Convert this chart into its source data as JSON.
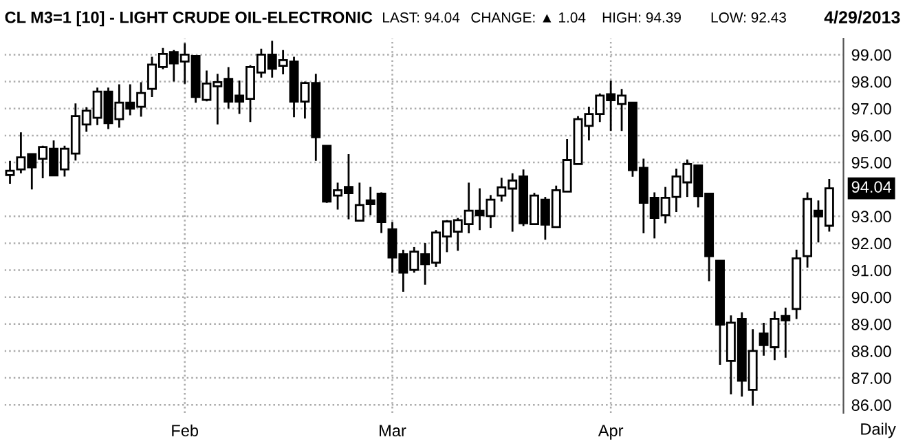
{
  "chart_data": {
    "type": "candlestick",
    "title": "CL M3=1 [10] - LIGHT CRUDE OIL-ELECTRONIC",
    "annotations": [
      "LAST: 94.04",
      "CHANGE: ▲ 1.04",
      "HIGH: 94.39",
      "LOW: 92.43",
      "4/29/2013",
      "Daily",
      "94.04"
    ],
    "categories": [
      null,
      null,
      null,
      null,
      null,
      null,
      null,
      null,
      null,
      null,
      null,
      null,
      null,
      null,
      null,
      null,
      "Feb",
      null,
      null,
      null,
      null,
      null,
      null,
      null,
      null,
      null,
      null,
      null,
      null,
      null,
      null,
      null,
      null,
      null,
      null,
      "Mar",
      null,
      null,
      null,
      null,
      null,
      null,
      null,
      null,
      null,
      null,
      null,
      null,
      null,
      null,
      null,
      null,
      null,
      null,
      null,
      "Apr",
      null,
      null,
      null,
      null,
      null,
      null,
      null,
      null,
      null,
      null,
      null,
      null,
      null,
      null,
      null,
      null,
      null,
      null,
      null,
      null
    ],
    "ohlc": [
      [
        94.53,
        95.06,
        94.21,
        94.69
      ],
      [
        94.74,
        96.12,
        94.6,
        95.19
      ],
      [
        95.31,
        95.31,
        94.0,
        94.82
      ],
      [
        95.14,
        95.62,
        94.41,
        95.57
      ],
      [
        95.51,
        95.82,
        94.52,
        94.52
      ],
      [
        94.74,
        95.62,
        94.48,
        95.51
      ],
      [
        95.33,
        97.19,
        95.07,
        96.72
      ],
      [
        96.41,
        97.05,
        96.14,
        96.92
      ],
      [
        96.66,
        97.78,
        96.39,
        97.63
      ],
      [
        97.63,
        97.78,
        96.24,
        96.46
      ],
      [
        96.61,
        97.9,
        96.29,
        97.22
      ],
      [
        97.22,
        97.9,
        96.75,
        97.0
      ],
      [
        97.07,
        97.98,
        96.7,
        97.58
      ],
      [
        97.73,
        98.92,
        97.43,
        98.63
      ],
      [
        98.54,
        99.25,
        98.46,
        99.03
      ],
      [
        99.1,
        99.17,
        98.0,
        98.68
      ],
      [
        98.75,
        99.42,
        97.92,
        99.0
      ],
      [
        98.95,
        98.95,
        97.22,
        97.43
      ],
      [
        97.32,
        98.41,
        97.27,
        97.93
      ],
      [
        97.83,
        98.29,
        96.41,
        97.98
      ],
      [
        98.1,
        98.54,
        97.0,
        97.26
      ],
      [
        97.48,
        98.04,
        96.8,
        97.26
      ],
      [
        97.36,
        98.61,
        96.5,
        98.54
      ],
      [
        98.34,
        99.22,
        98.15,
        99.0
      ],
      [
        99.0,
        99.52,
        98.15,
        98.48
      ],
      [
        98.59,
        99.17,
        98.27,
        98.8
      ],
      [
        98.75,
        98.92,
        96.68,
        97.26
      ],
      [
        97.26,
        98.0,
        96.63,
        97.95
      ],
      [
        97.95,
        98.29,
        95.06,
        95.94
      ],
      [
        95.62,
        95.62,
        93.5,
        93.55
      ],
      [
        93.77,
        94.25,
        93.25,
        93.97
      ],
      [
        94.09,
        95.31,
        92.89,
        93.86
      ],
      [
        92.84,
        94.25,
        92.84,
        93.42
      ],
      [
        93.59,
        94.09,
        93.04,
        93.45
      ],
      [
        93.84,
        93.89,
        92.38,
        92.79
      ],
      [
        92.52,
        92.79,
        90.91,
        91.47
      ],
      [
        91.59,
        91.76,
        90.2,
        90.91
      ],
      [
        91.01,
        91.86,
        90.91,
        91.69
      ],
      [
        91.59,
        92.01,
        90.46,
        91.22
      ],
      [
        91.28,
        92.49,
        91.12,
        92.4
      ],
      [
        92.25,
        92.86,
        91.67,
        92.81
      ],
      [
        92.43,
        92.94,
        91.72,
        92.86
      ],
      [
        92.71,
        94.25,
        92.37,
        93.21
      ],
      [
        93.21,
        94.04,
        92.49,
        93.04
      ],
      [
        93.01,
        93.79,
        92.57,
        93.62
      ],
      [
        93.77,
        94.43,
        93.55,
        94.08
      ],
      [
        94.03,
        94.6,
        92.43,
        94.33
      ],
      [
        94.48,
        94.74,
        92.64,
        92.74
      ],
      [
        92.71,
        93.87,
        92.71,
        93.77
      ],
      [
        93.62,
        93.72,
        92.13,
        92.69
      ],
      [
        92.6,
        94.14,
        92.6,
        93.97
      ],
      [
        93.92,
        95.87,
        93.92,
        95.09
      ],
      [
        94.94,
        96.72,
        94.94,
        96.61
      ],
      [
        96.36,
        97.07,
        95.82,
        96.8
      ],
      [
        96.8,
        97.56,
        96.5,
        97.48
      ],
      [
        97.53,
        98.04,
        96.17,
        97.31
      ],
      [
        97.17,
        97.73,
        96.17,
        97.48
      ],
      [
        97.22,
        97.22,
        94.47,
        94.72
      ],
      [
        94.8,
        95.14,
        92.37,
        93.5
      ],
      [
        93.69,
        93.89,
        92.18,
        92.94
      ],
      [
        93.04,
        94.09,
        92.74,
        93.69
      ],
      [
        93.72,
        94.77,
        93.16,
        94.48
      ],
      [
        94.26,
        95.11,
        93.72,
        94.94
      ],
      [
        94.89,
        94.89,
        93.33,
        93.75
      ],
      [
        93.84,
        93.84,
        90.59,
        91.52
      ],
      [
        91.35,
        91.35,
        87.49,
        88.98
      ],
      [
        87.63,
        89.32,
        86.39,
        89.05
      ],
      [
        89.19,
        89.44,
        86.31,
        86.9
      ],
      [
        86.56,
        88.81,
        85.97,
        88.0
      ],
      [
        88.65,
        89.05,
        87.83,
        88.22
      ],
      [
        88.14,
        89.47,
        87.66,
        89.19
      ],
      [
        89.3,
        89.61,
        87.75,
        89.14
      ],
      [
        89.56,
        91.76,
        89.19,
        91.44
      ],
      [
        91.52,
        93.89,
        91.1,
        93.64
      ],
      [
        93.21,
        93.59,
        92.03,
        93.0
      ],
      [
        92.65,
        94.39,
        92.43,
        94.04
      ]
    ],
    "ylim": [
      85.7,
      99.6
    ],
    "yticks": [
      {
        "value": 86,
        "label": "86.00"
      },
      {
        "value": 87,
        "label": "87.00"
      },
      {
        "value": 88,
        "label": "88.00"
      },
      {
        "value": 89,
        "label": "89.00"
      },
      {
        "value": 90,
        "label": "90.00"
      },
      {
        "value": 91,
        "label": "91.00"
      },
      {
        "value": 92,
        "label": "92.00"
      },
      {
        "value": 93,
        "label": "93.00"
      },
      {
        "value": 95,
        "label": "95.00"
      },
      {
        "value": 96,
        "label": "96.00"
      },
      {
        "value": 97,
        "label": "97.00"
      },
      {
        "value": 98,
        "label": "98.00"
      },
      {
        "value": 99,
        "label": "99.00"
      }
    ],
    "grid": true
  }
}
